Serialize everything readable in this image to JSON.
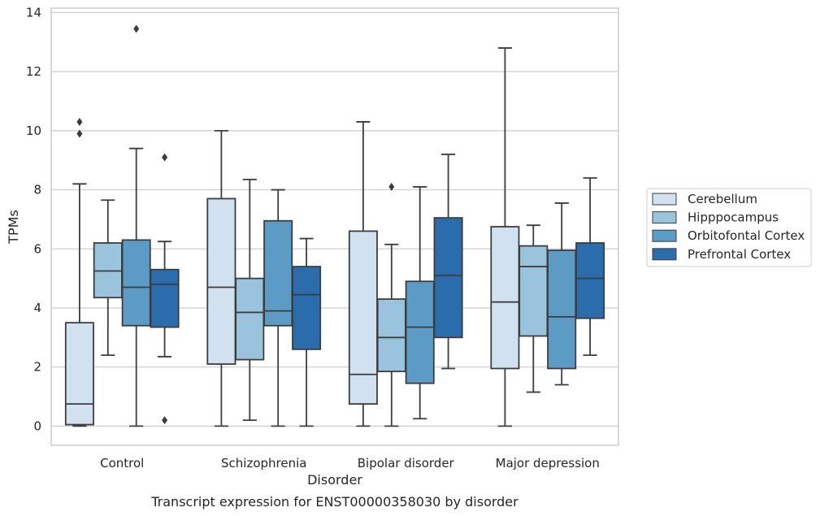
{
  "caption": "Transcript expression for ENST00000358030 by disorder",
  "chart_data": {
    "type": "boxplot",
    "xlabel": "Disorder",
    "ylabel": "TPMs",
    "ylim": [
      -0.65,
      14.15
    ],
    "yticks": [
      0,
      2,
      4,
      6,
      8,
      10,
      12,
      14
    ],
    "grid": "horizontal",
    "legend_position": "right",
    "categories": [
      "Control",
      "Schizophrenia",
      "Bipolar disorder",
      "Major depression"
    ],
    "series": [
      {
        "name": "Cerebellum",
        "color": "#d1e1ef",
        "boxes": [
          {
            "whislo": 0.0,
            "q1": 0.05,
            "med": 0.75,
            "q3": 3.5,
            "whishi": 8.2,
            "fliers": [
              10.3,
              9.9
            ]
          },
          {
            "whislo": 0.0,
            "q1": 2.1,
            "med": 4.7,
            "q3": 7.7,
            "whishi": 10.0,
            "fliers": []
          },
          {
            "whislo": 0.0,
            "q1": 0.75,
            "med": 1.75,
            "q3": 6.6,
            "whishi": 10.3,
            "fliers": []
          },
          {
            "whislo": 0.0,
            "q1": 1.95,
            "med": 4.2,
            "q3": 6.75,
            "whishi": 12.8,
            "fliers": []
          }
        ]
      },
      {
        "name": "Hipppocampus",
        "color": "#9ac4de",
        "boxes": [
          {
            "whislo": 2.4,
            "q1": 4.35,
            "med": 5.25,
            "q3": 6.2,
            "whishi": 7.65,
            "fliers": []
          },
          {
            "whislo": 0.2,
            "q1": 2.25,
            "med": 3.85,
            "q3": 5.0,
            "whishi": 8.35,
            "fliers": []
          },
          {
            "whislo": 0.0,
            "q1": 1.85,
            "med": 3.0,
            "q3": 4.3,
            "whishi": 6.15,
            "fliers": [
              8.1
            ]
          },
          {
            "whislo": 1.15,
            "q1": 3.05,
            "med": 5.4,
            "q3": 6.1,
            "whishi": 6.8,
            "fliers": []
          }
        ]
      },
      {
        "name": "Orbitofontal Cortex",
        "color": "#5b9bc6",
        "boxes": [
          {
            "whislo": 0.0,
            "q1": 3.4,
            "med": 4.7,
            "q3": 6.3,
            "whishi": 9.4,
            "fliers": [
              13.45
            ]
          },
          {
            "whislo": 0.0,
            "q1": 3.4,
            "med": 3.9,
            "q3": 6.95,
            "whishi": 8.0,
            "fliers": []
          },
          {
            "whislo": 0.25,
            "q1": 1.45,
            "med": 3.35,
            "q3": 4.9,
            "whishi": 8.1,
            "fliers": []
          },
          {
            "whislo": 1.4,
            "q1": 1.95,
            "med": 3.7,
            "q3": 5.95,
            "whishi": 7.55,
            "fliers": []
          }
        ]
      },
      {
        "name": "Prefrontal Cortex",
        "color": "#2b6cac",
        "boxes": [
          {
            "whislo": 2.35,
            "q1": 3.35,
            "med": 4.8,
            "q3": 5.3,
            "whishi": 6.25,
            "fliers": [
              9.1,
              0.2
            ]
          },
          {
            "whislo": 0.0,
            "q1": 2.6,
            "med": 4.45,
            "q3": 5.4,
            "whishi": 6.35,
            "fliers": []
          },
          {
            "whislo": 1.95,
            "q1": 3.0,
            "med": 5.1,
            "q3": 7.05,
            "whishi": 9.2,
            "fliers": []
          },
          {
            "whislo": 2.4,
            "q1": 3.65,
            "med": 5.0,
            "q3": 6.2,
            "whishi": 8.4,
            "fliers": []
          }
        ]
      }
    ]
  }
}
